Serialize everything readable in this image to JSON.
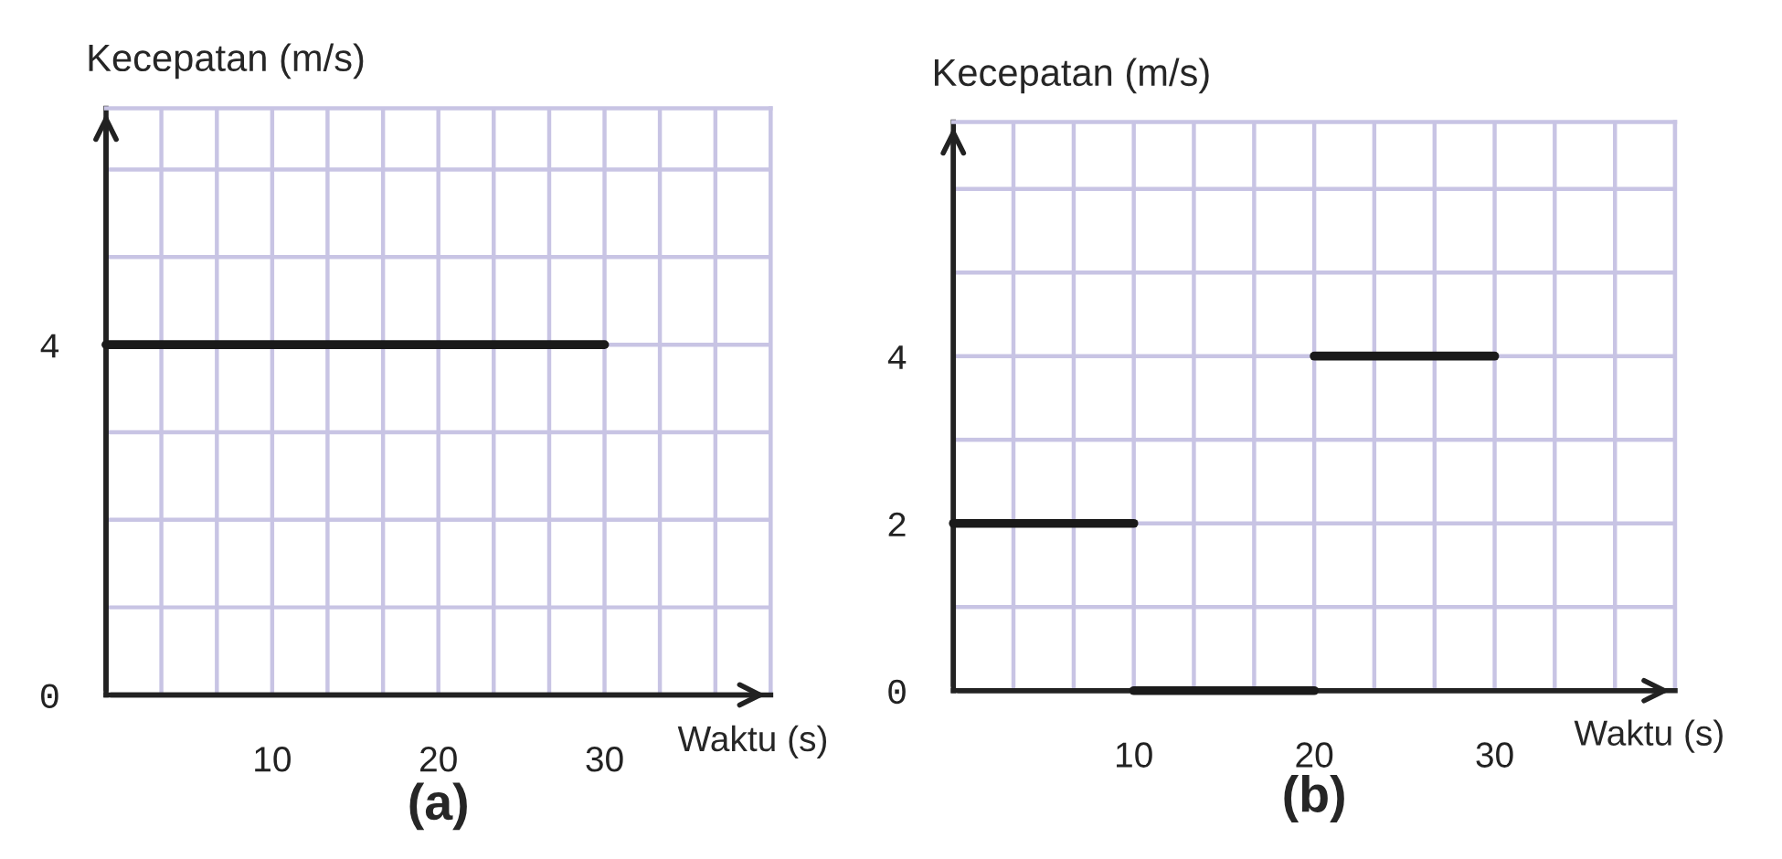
{
  "chart_data": [
    {
      "type": "line",
      "title": "(a)",
      "xlabel": "Waktu (s)",
      "ylabel": "Kecepatan (m/s)",
      "xlim": [
        0,
        40
      ],
      "ylim": [
        0,
        6.7
      ],
      "xticks": [
        {
          "value": 3.33,
          "label": null
        },
        {
          "value": 6.67,
          "label": null
        },
        10,
        {
          "value": 13.33,
          "label": null
        },
        {
          "value": 16.67,
          "label": null
        },
        20,
        {
          "value": 23.33,
          "label": null
        },
        {
          "value": 26.67,
          "label": null
        },
        30,
        {
          "value": 33.33,
          "label": null
        },
        {
          "value": 36.67,
          "label": null
        },
        {
          "value": 40,
          "label": null
        }
      ],
      "yticks": [
        0,
        {
          "value": 1,
          "label": null
        },
        {
          "value": 2,
          "label": null
        },
        {
          "value": 3,
          "label": null
        },
        4,
        {
          "value": 5,
          "label": null
        },
        {
          "value": 6,
          "label": null
        }
      ],
      "grid": true,
      "line_style": "solid",
      "series": [
        {
          "color": "#1a1a1a",
          "x": [
            0,
            30
          ],
          "values": [
            4,
            4
          ]
        }
      ]
    },
    {
      "type": "line",
      "title": "(b)",
      "xlabel": "Waktu (s)",
      "ylabel": "Kecepatan (m/s)",
      "xlim": [
        0,
        40
      ],
      "ylim": [
        0,
        6.8
      ],
      "xticks": [
        {
          "value": 3.33,
          "label": null
        },
        {
          "value": 6.67,
          "label": null
        },
        10,
        {
          "value": 13.33,
          "label": null
        },
        {
          "value": 16.67,
          "label": null
        },
        20,
        {
          "value": 23.33,
          "label": null
        },
        {
          "value": 26.67,
          "label": null
        },
        30,
        {
          "value": 33.33,
          "label": null
        },
        {
          "value": 36.67,
          "label": null
        },
        {
          "value": 40,
          "label": null
        }
      ],
      "yticks": [
        0,
        {
          "value": 1,
          "label": null
        },
        2,
        {
          "value": 3,
          "label": null
        },
        4,
        {
          "value": 5,
          "label": null
        },
        {
          "value": 6,
          "label": null
        }
      ],
      "grid": true,
      "line_style": "solid",
      "series": [
        {
          "color": "#1a1a1a",
          "x": [
            0,
            10
          ],
          "values": [
            2,
            2
          ]
        },
        {
          "color": "#1a1a1a",
          "x": [
            10,
            20
          ],
          "values": [
            0,
            0
          ]
        },
        {
          "color": "#1a1a1a",
          "x": [
            20,
            30
          ],
          "values": [
            4,
            4
          ]
        }
      ]
    }
  ]
}
